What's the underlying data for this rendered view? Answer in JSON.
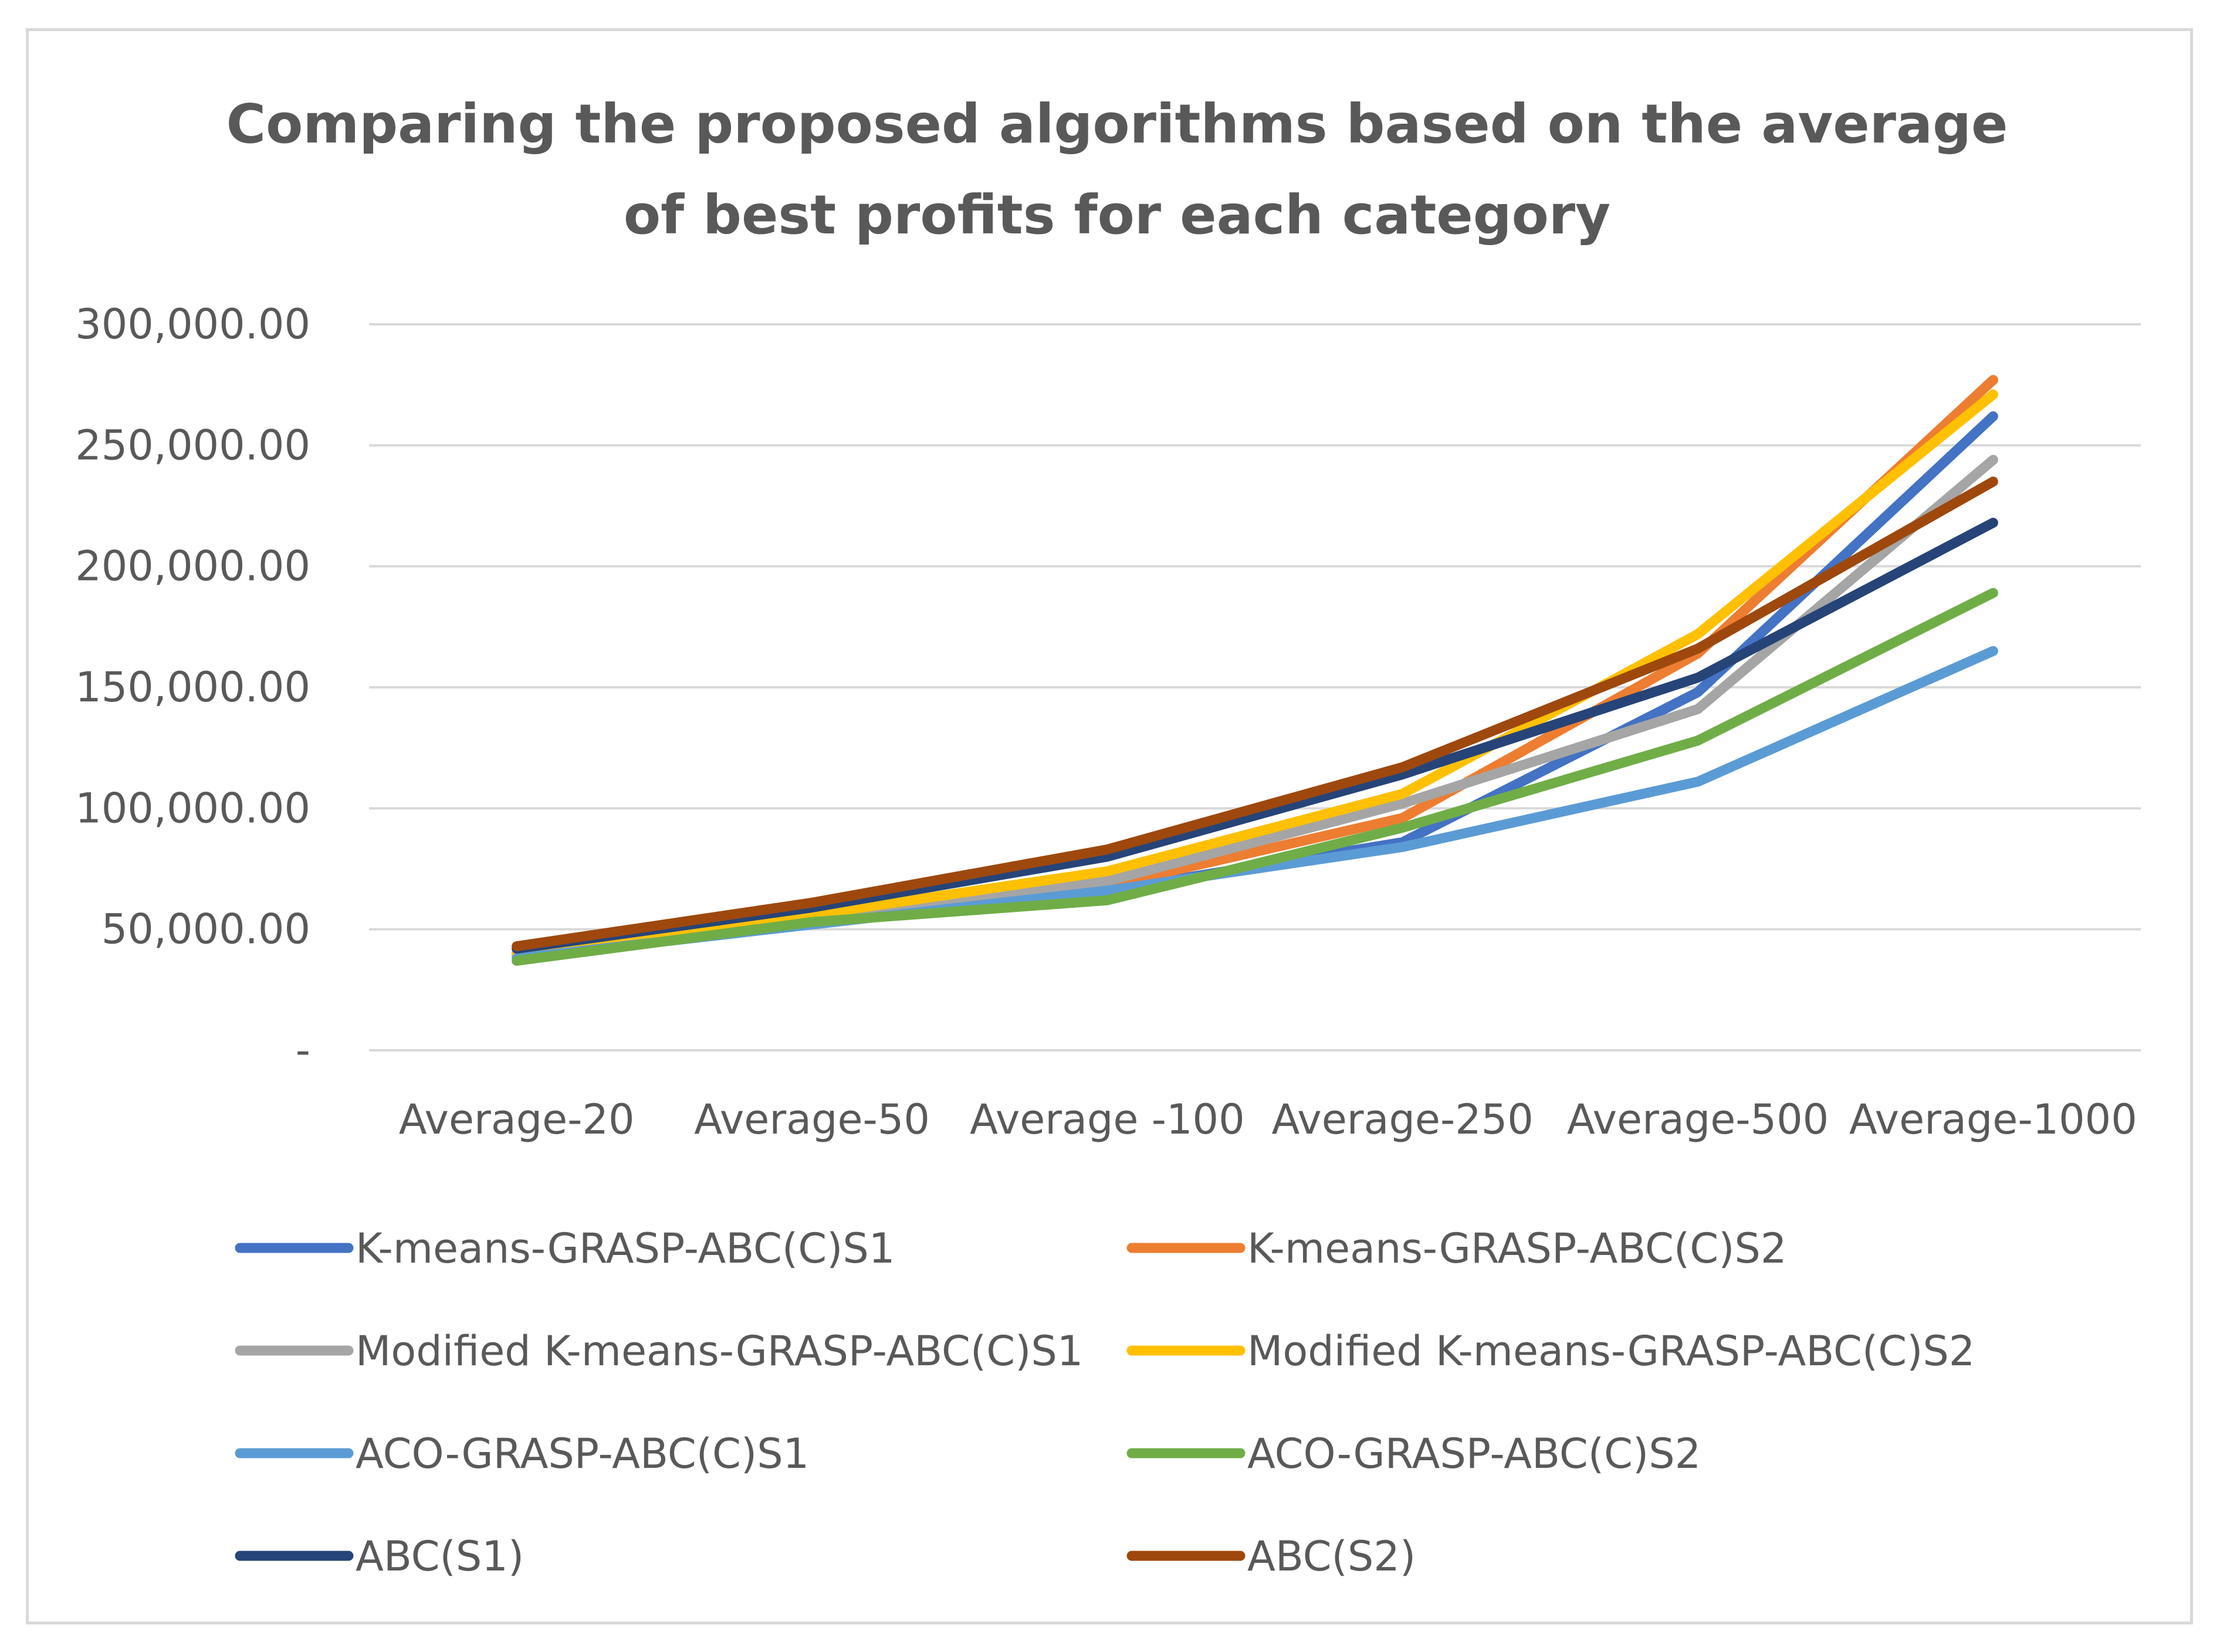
{
  "chart_data": {
    "type": "line",
    "title": "Comparing the proposed algorithms based on the average of best profits for each category",
    "title_lines": [
      "Comparing the proposed algorithms based on the average",
      "of best profits for each category"
    ],
    "xlabel": "",
    "ylabel": "",
    "categories": [
      "Average-20",
      "Average-50",
      "Average -100",
      "Average-250",
      "Average-500",
      "Average-1000"
    ],
    "ylim": [
      0,
      300000
    ],
    "yticks": [
      0,
      50000,
      100000,
      150000,
      200000,
      250000,
      300000
    ],
    "ytick_labels": [
      "-",
      "50,000.00",
      "100,000.00",
      "150,000.00",
      "200,000.00",
      "250,000.00",
      "300,000.00"
    ],
    "grid": true,
    "legend_position": "bottom",
    "series": [
      {
        "name": "K-means-GRASP-ABC(C)S1",
        "color": "#4472c4",
        "values": [
          40000,
          52000,
          66000,
          86000,
          148000,
          262000
        ]
      },
      {
        "name": "K-means-GRASP-ABC(C)S2",
        "color": "#ed7d31",
        "values": [
          40000,
          52000,
          68000,
          96000,
          164000,
          277000
        ]
      },
      {
        "name": "Modified K-means-GRASP-ABC(C)S1",
        "color": "#a5a5a5",
        "values": [
          39000,
          52000,
          70000,
          102000,
          141000,
          244000
        ]
      },
      {
        "name": "Modified K-means-GRASP-ABC(C)S2",
        "color": "#ffc000",
        "values": [
          40000,
          56000,
          74000,
          106000,
          172000,
          271000
        ]
      },
      {
        "name": "ACO-GRASP-ABC(C)S1",
        "color": "#5b9bd5",
        "values": [
          38000,
          52000,
          66000,
          84000,
          111000,
          165000
        ]
      },
      {
        "name": "ACO-GRASP-ABC(C)S2",
        "color": "#70ad47",
        "values": [
          37000,
          53000,
          62000,
          92000,
          128000,
          189000
        ]
      },
      {
        "name": "ABC(S1)",
        "color": "#264478",
        "values": [
          42000,
          59000,
          80000,
          114000,
          154000,
          218000
        ]
      },
      {
        "name": "ABC(S2)",
        "color": "#9e480e",
        "values": [
          43000,
          61000,
          83000,
          117000,
          166000,
          235000
        ]
      }
    ]
  }
}
